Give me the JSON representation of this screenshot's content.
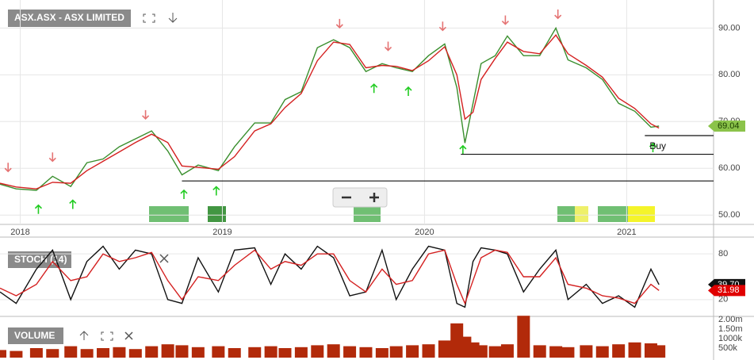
{
  "chart_data": [
    {
      "type": "line",
      "title": "ASX.ASX - ASX LIMITED",
      "x": [
        2017.9,
        2017.98,
        2018.08,
        2018.16,
        2018.25,
        2018.33,
        2018.41,
        2018.49,
        2018.57,
        2018.65,
        2018.73,
        2018.8,
        2018.88,
        2018.98,
        2019.06,
        2019.16,
        2019.24,
        2019.31,
        2019.39,
        2019.47,
        2019.55,
        2019.63,
        2019.71,
        2019.79,
        2019.86,
        2019.94,
        2020.02,
        2020.1,
        2020.16,
        2020.2,
        2020.24,
        2020.28,
        2020.35,
        2020.41,
        2020.49,
        2020.57,
        2020.65,
        2020.71,
        2020.8,
        2020.88,
        2020.96,
        2021.04,
        2021.12,
        2021.16
      ],
      "series": [
        {
          "color": "#3a8f2e",
          "values": [
            56.6,
            55.6,
            55.3,
            58.3,
            56.1,
            61.2,
            62.0,
            64.6,
            66.3,
            68.0,
            63.7,
            58.6,
            60.7,
            59.5,
            64.6,
            69.7,
            69.7,
            74.7,
            76.4,
            85.8,
            87.5,
            85.8,
            80.7,
            82.4,
            81.5,
            80.7,
            84.1,
            86.6,
            77.3,
            65.4,
            73.9,
            82.4,
            84.1,
            88.3,
            84.1,
            84.1,
            90.0,
            83.2,
            81.5,
            79.0,
            73.9,
            72.2,
            68.8,
            69.04
          ]
        },
        {
          "color": "#d42020",
          "values": [
            56.8,
            56.0,
            55.6,
            57.0,
            56.8,
            59.5,
            61.5,
            63.5,
            65.5,
            67.3,
            65.5,
            60.5,
            60.2,
            59.8,
            62.5,
            68.0,
            69.5,
            73.0,
            76.0,
            83.0,
            87.0,
            86.5,
            81.5,
            82.0,
            81.8,
            80.9,
            83.0,
            86.0,
            80.0,
            70.5,
            72.0,
            79.0,
            83.5,
            87.0,
            85.0,
            84.5,
            88.5,
            84.5,
            82.0,
            79.5,
            75.0,
            72.8,
            69.5,
            68.6
          ]
        }
      ],
      "xlim": [
        2017.9,
        2021.43
      ],
      "xticks": [
        2018,
        2019,
        2020,
        2021
      ],
      "ylim": [
        48,
        96
      ],
      "yticks": [
        {
          "value": 50,
          "label": "50.00"
        },
        {
          "value": 60,
          "label": "60.00"
        },
        {
          "value": 70,
          "label": "70.00"
        },
        {
          "value": 80,
          "label": "80.00"
        },
        {
          "value": 90,
          "label": "90.00"
        }
      ],
      "grid": true,
      "sell_signals": [
        2017.94,
        2018.16,
        2018.62,
        2019.58,
        2019.82,
        2020.09,
        2020.4,
        2020.66
      ],
      "buy_signals": [
        2018.09,
        2018.26,
        2018.81,
        2018.97,
        2019.75,
        2019.92,
        2020.19,
        2021.13
      ],
      "hlines": [
        {
          "value": 57.3,
          "from": 2018.8
        },
        {
          "value": 63.0,
          "from": 2020.18
        },
        {
          "value": 67.0,
          "from": 2021.09
        }
      ],
      "annotation": "Buy",
      "end_tag": 69.04
    },
    {
      "type": "line",
      "title": "STOCH (14)",
      "x": [
        2017.9,
        2017.98,
        2018.08,
        2018.16,
        2018.25,
        2018.33,
        2018.41,
        2018.49,
        2018.57,
        2018.65,
        2018.73,
        2018.8,
        2018.88,
        2018.98,
        2019.06,
        2019.16,
        2019.24,
        2019.31,
        2019.39,
        2019.47,
        2019.55,
        2019.63,
        2019.71,
        2019.79,
        2019.86,
        2019.94,
        2020.02,
        2020.1,
        2020.16,
        2020.2,
        2020.24,
        2020.28,
        2020.35,
        2020.41,
        2020.49,
        2020.57,
        2020.65,
        2020.71,
        2020.8,
        2020.88,
        2020.96,
        2021.04,
        2021.12,
        2021.16
      ],
      "series": [
        {
          "color": "#111111",
          "values": [
            30,
            15,
            60,
            85,
            20,
            70,
            90,
            60,
            85,
            80,
            20,
            15,
            75,
            30,
            85,
            88,
            40,
            80,
            60,
            90,
            75,
            25,
            30,
            85,
            20,
            60,
            90,
            85,
            15,
            10,
            70,
            88,
            85,
            80,
            30,
            60,
            85,
            20,
            40,
            15,
            25,
            10,
            60,
            39.7
          ]
        },
        {
          "color": "#d42020",
          "values": [
            35,
            25,
            40,
            70,
            45,
            50,
            80,
            70,
            75,
            82,
            45,
            20,
            50,
            45,
            65,
            85,
            60,
            70,
            65,
            80,
            80,
            45,
            30,
            60,
            40,
            45,
            80,
            85,
            40,
            15,
            45,
            75,
            85,
            82,
            50,
            50,
            75,
            40,
            35,
            25,
            22,
            15,
            40,
            31.98
          ]
        }
      ],
      "xlim": [
        2017.9,
        2021.43
      ],
      "ylim": [
        -1,
        101
      ],
      "yticks": [
        20,
        80
      ],
      "grid": true,
      "end_tags": [
        {
          "value": 39.7,
          "label": "39.70"
        },
        31.98
      ]
    },
    {
      "type": "bar",
      "title": "VOLUME",
      "x": [
        2017.9,
        2017.98,
        2018.08,
        2018.16,
        2018.25,
        2018.33,
        2018.41,
        2018.49,
        2018.57,
        2018.65,
        2018.73,
        2018.8,
        2018.88,
        2018.98,
        2019.06,
        2019.16,
        2019.24,
        2019.31,
        2019.39,
        2019.47,
        2019.55,
        2019.63,
        2019.71,
        2019.79,
        2019.86,
        2019.94,
        2020.02,
        2020.1,
        2020.16,
        2020.2,
        2020.24,
        2020.28,
        2020.35,
        2020.41,
        2020.49,
        2020.57,
        2020.65,
        2020.71,
        2020.8,
        2020.88,
        2020.96,
        2021.04,
        2021.12,
        2021.16
      ],
      "values": [
        400000,
        350000,
        500000,
        450000,
        600000,
        450000,
        500000,
        550000,
        450000,
        600000,
        700000,
        650000,
        550000,
        600000,
        500000,
        550000,
        600000,
        500000,
        550000,
        650000,
        700000,
        600000,
        550000,
        500000,
        600000,
        650000,
        700000,
        900000,
        1800000,
        1100000,
        800000,
        650000,
        600000,
        700000,
        2200000,
        650000,
        600000,
        550000,
        650000,
        600000,
        700000,
        800000,
        750000,
        650000
      ],
      "color": "#b22a0a",
      "xlim": [
        2017.9,
        2021.43
      ],
      "ylim": [
        0,
        2125000
      ],
      "yticks": [
        {
          "value": 500000,
          "label": "500k"
        },
        {
          "value": 1000000,
          "label": "1000k"
        },
        {
          "value": 1500000,
          "label": "1.50m"
        },
        {
          "value": 2000000,
          "label": "2.00m"
        }
      ]
    }
  ]
}
